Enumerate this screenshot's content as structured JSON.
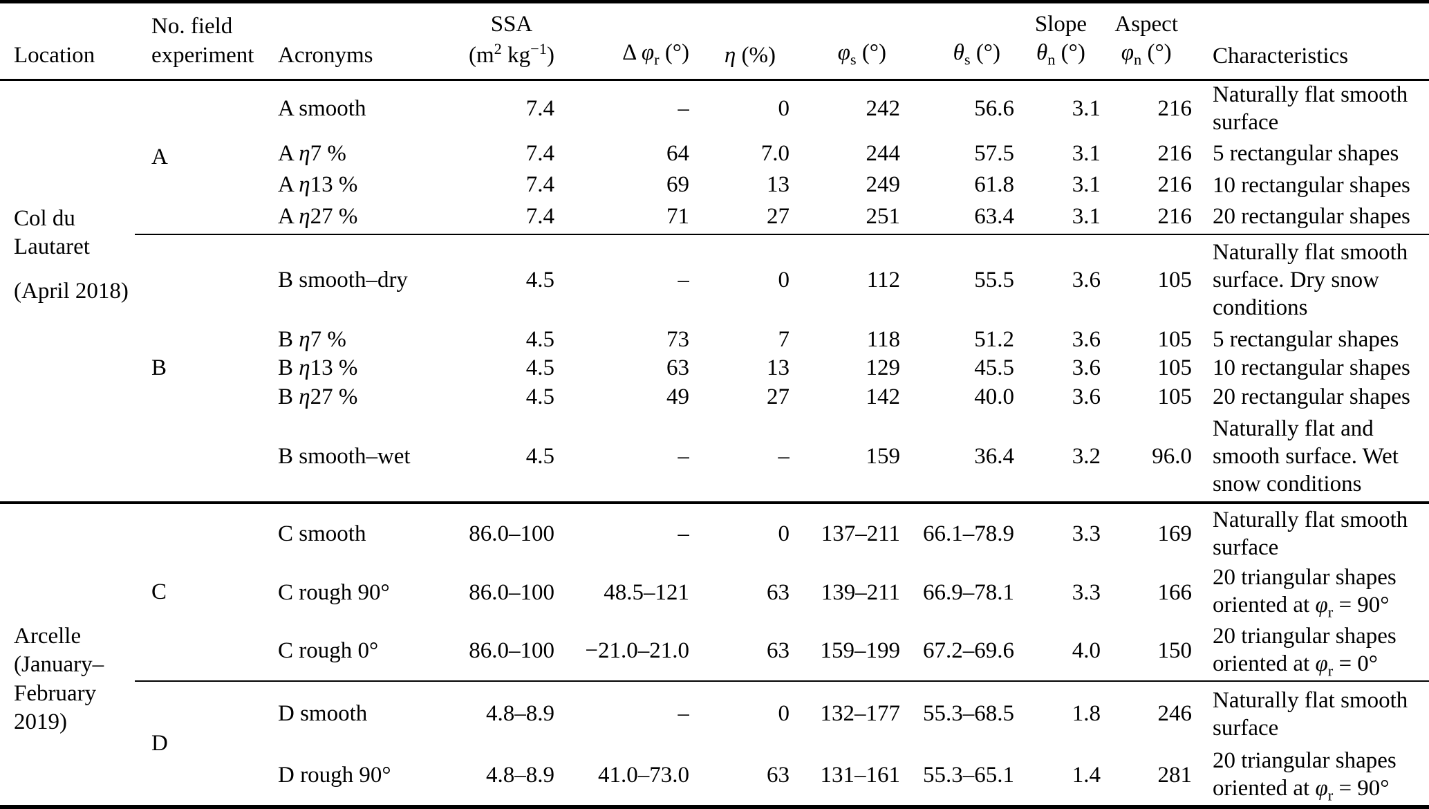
{
  "table": {
    "header": {
      "location": "Location",
      "experiment": "No. field<br>experiment",
      "acronyms": "Acronyms",
      "ssa": "SSA<br>(m<sup>2</sup> kg<sup>−1</sup>)",
      "delta_phi_r": "Δ <i>φ</i><sub>r</sub> (°)",
      "eta": "<i>η</i> (%)",
      "phi_s": "<i>φ</i><sub>s</sub> (°)",
      "theta_s": "<i>θ</i><sub>s</sub> (°)",
      "slope": "Slope<br><i>θ</i><sub>n</sub> (°)",
      "aspect": "Aspect<br><i>φ</i><sub>n</sub> (°)",
      "characteristics": "Characteristics"
    },
    "groups": [
      {
        "location": "Col du Lautaret",
        "dates": "(April 2018)",
        "experiments": [
          "A",
          "B"
        ]
      },
      {
        "location": "Arcelle (January–",
        "dates": "February 2019)",
        "experiments": [
          "C",
          "D"
        ]
      }
    ],
    "rows": [
      {
        "acronym": "A smooth",
        "ssa": "7.4",
        "delta_phi_r": "–",
        "eta": "0",
        "phi_s": "242",
        "theta_s": "56.6",
        "slope": "3.1",
        "aspect": "216",
        "characteristics": "Naturally flat smooth<br>surface"
      },
      {
        "acronym": "A <i>η</i>7 %",
        "ssa": "7.4",
        "delta_phi_r": "64",
        "eta": "7.0",
        "phi_s": "244",
        "theta_s": "57.5",
        "slope": "3.1",
        "aspect": "216",
        "characteristics": "5 rectangular shapes"
      },
      {
        "acronym": "A <i>η</i>13 %",
        "ssa": "7.4",
        "delta_phi_r": "69",
        "eta": "13",
        "phi_s": "249",
        "theta_s": "61.8",
        "slope": "3.1",
        "aspect": "216",
        "characteristics": "10 rectangular shapes"
      },
      {
        "acronym": "A <i>η</i>27 %",
        "ssa": "7.4",
        "delta_phi_r": "71",
        "eta": "27",
        "phi_s": "251",
        "theta_s": "63.4",
        "slope": "3.1",
        "aspect": "216",
        "characteristics": "20 rectangular shapes"
      },
      {
        "acronym": "B smooth–dry",
        "ssa": "4.5",
        "delta_phi_r": "–",
        "eta": "0",
        "phi_s": "112",
        "theta_s": "55.5",
        "slope": "3.6",
        "aspect": "105",
        "characteristics": "Naturally flat smooth<br>surface. Dry snow<br>conditions"
      },
      {
        "acronym": "B <i>η</i>7 %",
        "ssa": "4.5",
        "delta_phi_r": "73",
        "eta": "7",
        "phi_s": "118",
        "theta_s": "51.2",
        "slope": "3.6",
        "aspect": "105",
        "characteristics": "5 rectangular shapes"
      },
      {
        "acronym": "B <i>η</i>13 %",
        "ssa": "4.5",
        "delta_phi_r": "63",
        "eta": "13",
        "phi_s": "129",
        "theta_s": "45.5",
        "slope": "3.6",
        "aspect": "105",
        "characteristics": "10 rectangular shapes"
      },
      {
        "acronym": "B <i>η</i>27 %",
        "ssa": "4.5",
        "delta_phi_r": "49",
        "eta": "27",
        "phi_s": "142",
        "theta_s": "40.0",
        "slope": "3.6",
        "aspect": "105",
        "characteristics": "20 rectangular shapes"
      },
      {
        "acronym": "B smooth–wet",
        "ssa": "4.5",
        "delta_phi_r": "–",
        "eta": "–",
        "phi_s": "159",
        "theta_s": "36.4",
        "slope": "3.2",
        "aspect": "96.0",
        "characteristics": "Naturally flat and<br>smooth surface. Wet<br>snow conditions"
      },
      {
        "acronym": "C smooth",
        "ssa": "86.0–100",
        "delta_phi_r": "–",
        "eta": "0",
        "phi_s": "137–211",
        "theta_s": "66.1–78.9",
        "slope": "3.3",
        "aspect": "169",
        "characteristics": "Naturally flat smooth<br>surface"
      },
      {
        "acronym": "C rough 90°",
        "ssa": "86.0–100",
        "delta_phi_r": "48.5–121",
        "eta": "63",
        "phi_s": "139–211",
        "theta_s": "66.9–78.1",
        "slope": "3.3",
        "aspect": "166",
        "characteristics": "20 triangular shapes<br>oriented at <i>φ</i><sub>r</sub> = 90°"
      },
      {
        "acronym": "C rough 0°",
        "ssa": "86.0–100",
        "delta_phi_r": "−21.0–21.0",
        "eta": "63",
        "phi_s": "159–199",
        "theta_s": "67.2–69.6",
        "slope": "4.0",
        "aspect": "150",
        "characteristics": "20 triangular shapes<br>oriented at <i>φ</i><sub>r</sub> = 0°"
      },
      {
        "acronym": "D smooth",
        "ssa": "4.8–8.9",
        "delta_phi_r": "–",
        "eta": "0",
        "phi_s": "132–177",
        "theta_s": "55.3–68.5",
        "slope": "1.8",
        "aspect": "246",
        "characteristics": "Naturally flat smooth<br>surface"
      },
      {
        "acronym": "D rough 90°",
        "ssa": "4.8–8.9",
        "delta_phi_r": "41.0–73.0",
        "eta": "63",
        "phi_s": "131–161",
        "theta_s": "55.3–65.1",
        "slope": "1.4",
        "aspect": "281",
        "characteristics": "20 triangular shapes<br>oriented at <i>φ</i><sub>r</sub> = 90°"
      }
    ]
  }
}
